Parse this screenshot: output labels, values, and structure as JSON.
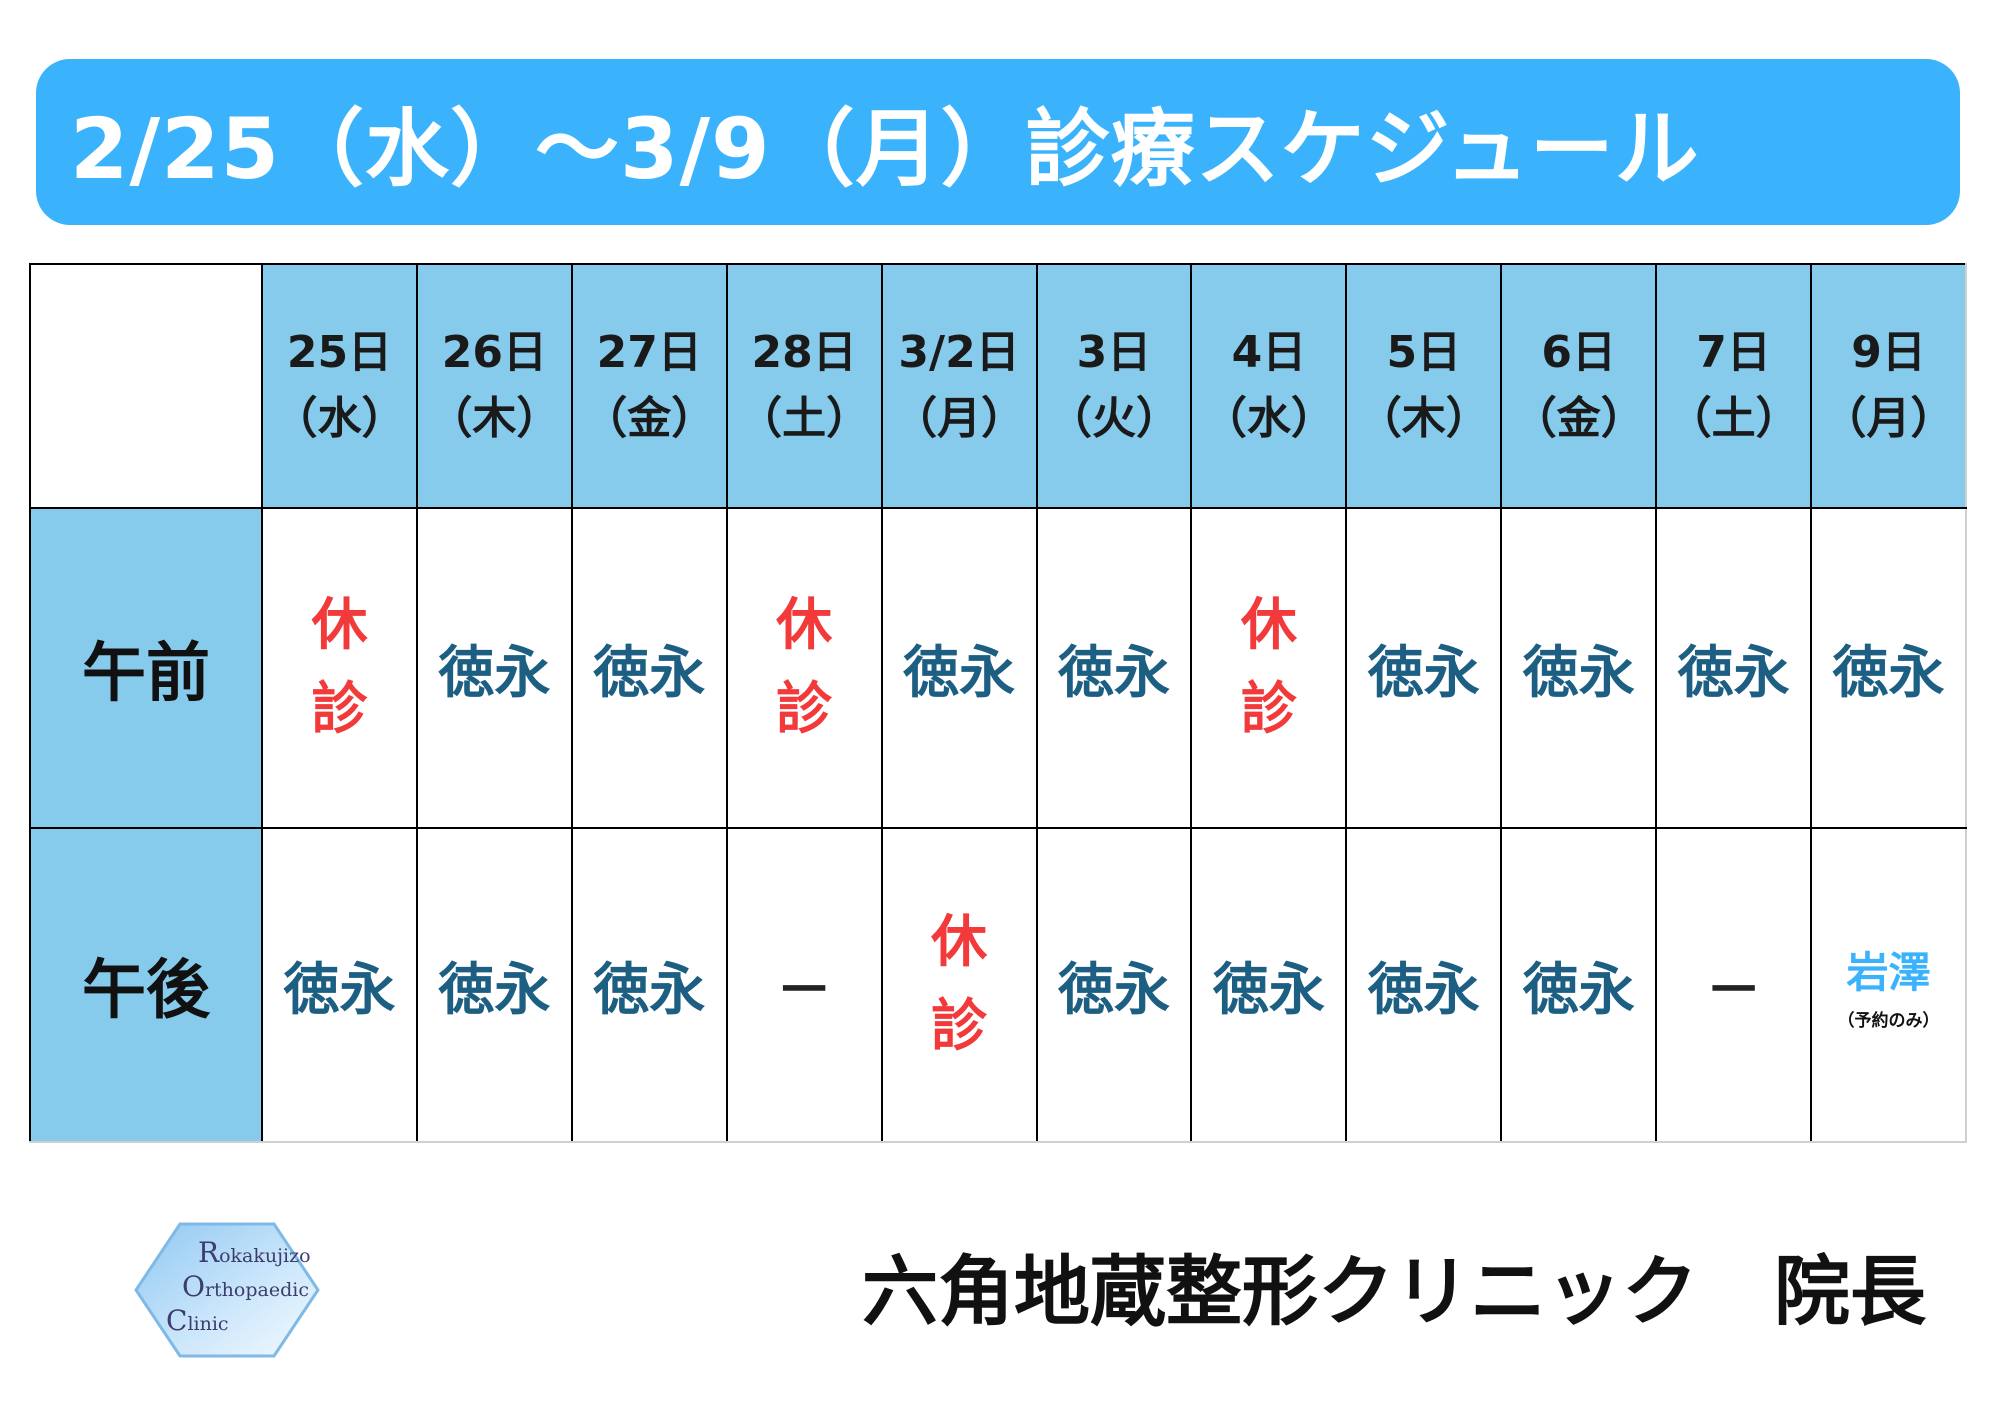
{
  "title": "2/25（水）〜3/9（月）診療スケジュール",
  "days": [
    {
      "date": "25日",
      "weekday": "（水）"
    },
    {
      "date": "26日",
      "weekday": "（木）"
    },
    {
      "date": "27日",
      "weekday": "（金）"
    },
    {
      "date": "28日",
      "weekday": "（土）"
    },
    {
      "date": "3/2日",
      "weekday": "（月）"
    },
    {
      "date": "3日",
      "weekday": "（火）"
    },
    {
      "date": "4日",
      "weekday": "（水）"
    },
    {
      "date": "5日",
      "weekday": "（木）"
    },
    {
      "date": "6日",
      "weekday": "（金）"
    },
    {
      "date": "7日",
      "weekday": "（土）"
    },
    {
      "date": "9日",
      "weekday": "（月）"
    }
  ],
  "rows": {
    "am_label": "午前",
    "pm_label": "午後"
  },
  "labels": {
    "doctor": "徳永",
    "closed_1": "休",
    "closed_2": "診",
    "dash": "－",
    "iwasawa": "岩澤",
    "reservation_only": "（予約のみ）"
  },
  "colors": {
    "banner": "#3bb3fc",
    "header_fill": "#86cbeb",
    "doctor_text": "#1d5f82",
    "closed_text": "#f23a3a",
    "iwasawa_text": "#3bb3fc"
  },
  "logo": {
    "line1_cap": "R",
    "line1_rest": "okakujizo",
    "line2_cap": "O",
    "line2_rest": "rthopaedic",
    "line3_cap": "C",
    "line3_rest": "linic",
    "icon": "hexagon-icon"
  },
  "footer": "六角地蔵整形クリニック　院長"
}
